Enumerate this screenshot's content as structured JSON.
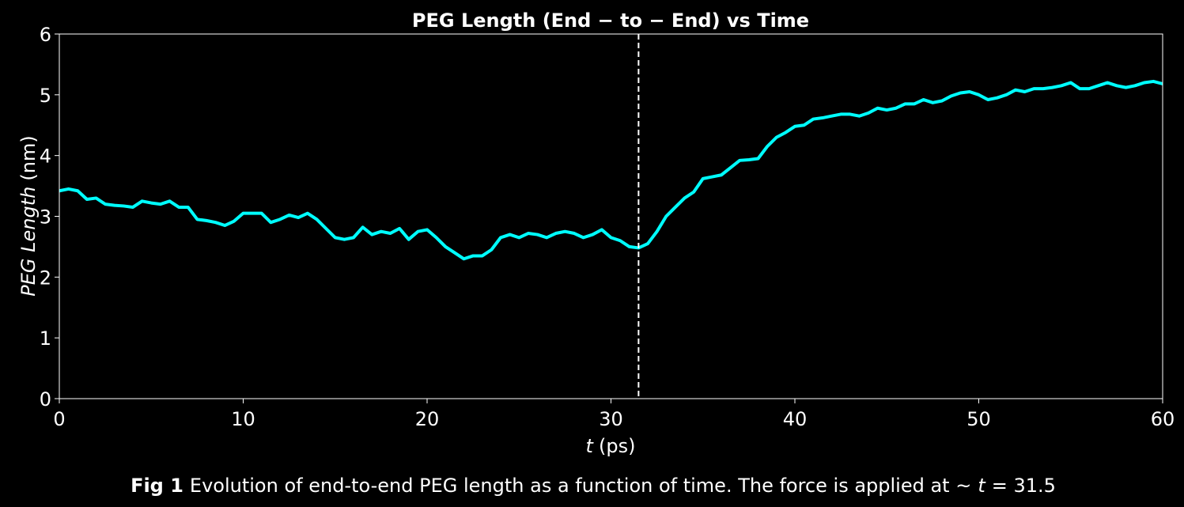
{
  "chart_data": {
    "type": "line",
    "title": "PEG Length (End − to − End) vs Time",
    "x_label_var": "t",
    "x_label_unit": "(ps)",
    "y_label_var": "PEG Length",
    "y_label_unit": "(nm)",
    "caption_label": "Fig 1",
    "caption_text": "Evolution of end-to-end PEG length as a function of time. The force is applied at ~",
    "caption_var": "t",
    "caption_tail": "= 31.5",
    "vline": 31.5,
    "vline_color": "#ffffff",
    "x": [
      0,
      0.5,
      1,
      1.5,
      2,
      2.5,
      3,
      3.5,
      4,
      4.5,
      5,
      5.5,
      6,
      6.5,
      7,
      7.5,
      8,
      8.5,
      9,
      9.5,
      10,
      10.5,
      11,
      11.5,
      12,
      12.5,
      13,
      13.5,
      14,
      14.5,
      15,
      15.5,
      16,
      16.5,
      17,
      17.5,
      18,
      18.5,
      19,
      19.5,
      20,
      20.5,
      21,
      21.5,
      22,
      22.5,
      23,
      23.5,
      24,
      24.5,
      25,
      25.5,
      26,
      26.5,
      27,
      27.5,
      28,
      28.5,
      29,
      29.5,
      30,
      30.5,
      31,
      31.5,
      32,
      32.5,
      33,
      33.5,
      34,
      34.5,
      35,
      35.5,
      36,
      36.5,
      37,
      37.5,
      38,
      38.5,
      39,
      39.5,
      40,
      40.5,
      41,
      41.5,
      42,
      42.5,
      43,
      43.5,
      44,
      44.5,
      45,
      45.5,
      46,
      46.5,
      47,
      47.5,
      48,
      48.5,
      49,
      49.5,
      50,
      50.5,
      51,
      51.5,
      52,
      52.5,
      53,
      53.5,
      54,
      54.5,
      55,
      55.5,
      56,
      56.5,
      57,
      57.5,
      58,
      58.5,
      59,
      59.5,
      60
    ],
    "series": [
      {
        "color": "#00ffff",
        "values": [
          3.42,
          3.45,
          3.42,
          3.28,
          3.3,
          3.2,
          3.18,
          3.17,
          3.15,
          3.25,
          3.22,
          3.2,
          3.25,
          3.15,
          3.15,
          2.95,
          2.93,
          2.9,
          2.85,
          2.92,
          3.05,
          3.05,
          3.05,
          2.9,
          2.95,
          3.02,
          2.98,
          3.05,
          2.95,
          2.8,
          2.65,
          2.62,
          2.65,
          2.82,
          2.7,
          2.75,
          2.72,
          2.8,
          2.62,
          2.75,
          2.78,
          2.65,
          2.5,
          2.4,
          2.3,
          2.35,
          2.35,
          2.45,
          2.65,
          2.7,
          2.65,
          2.72,
          2.7,
          2.65,
          2.72,
          2.75,
          2.72,
          2.65,
          2.7,
          2.78,
          2.65,
          2.6,
          2.5,
          2.48,
          2.55,
          2.75,
          3.0,
          3.15,
          3.3,
          3.4,
          3.62,
          3.65,
          3.68,
          3.8,
          3.92,
          3.93,
          3.95,
          4.15,
          4.3,
          4.38,
          4.48,
          4.5,
          4.6,
          4.62,
          4.65,
          4.68,
          4.68,
          4.65,
          4.7,
          4.78,
          4.75,
          4.78,
          4.85,
          4.85,
          4.92,
          4.87,
          4.9,
          4.98,
          5.03,
          5.05,
          5.0,
          4.92,
          4.95,
          5.0,
          5.08,
          5.05,
          5.1,
          5.1,
          5.12,
          5.15,
          5.2,
          5.1,
          5.1,
          5.15,
          5.2,
          5.15,
          5.12,
          5.15,
          5.2,
          5.22,
          5.18
        ]
      }
    ],
    "xlim": [
      0,
      60
    ],
    "xticks": [
      0,
      10,
      20,
      30,
      40,
      50,
      60
    ],
    "ylim": [
      0,
      6
    ],
    "yticks": [
      0,
      1,
      2,
      3,
      4,
      5,
      6
    ]
  }
}
